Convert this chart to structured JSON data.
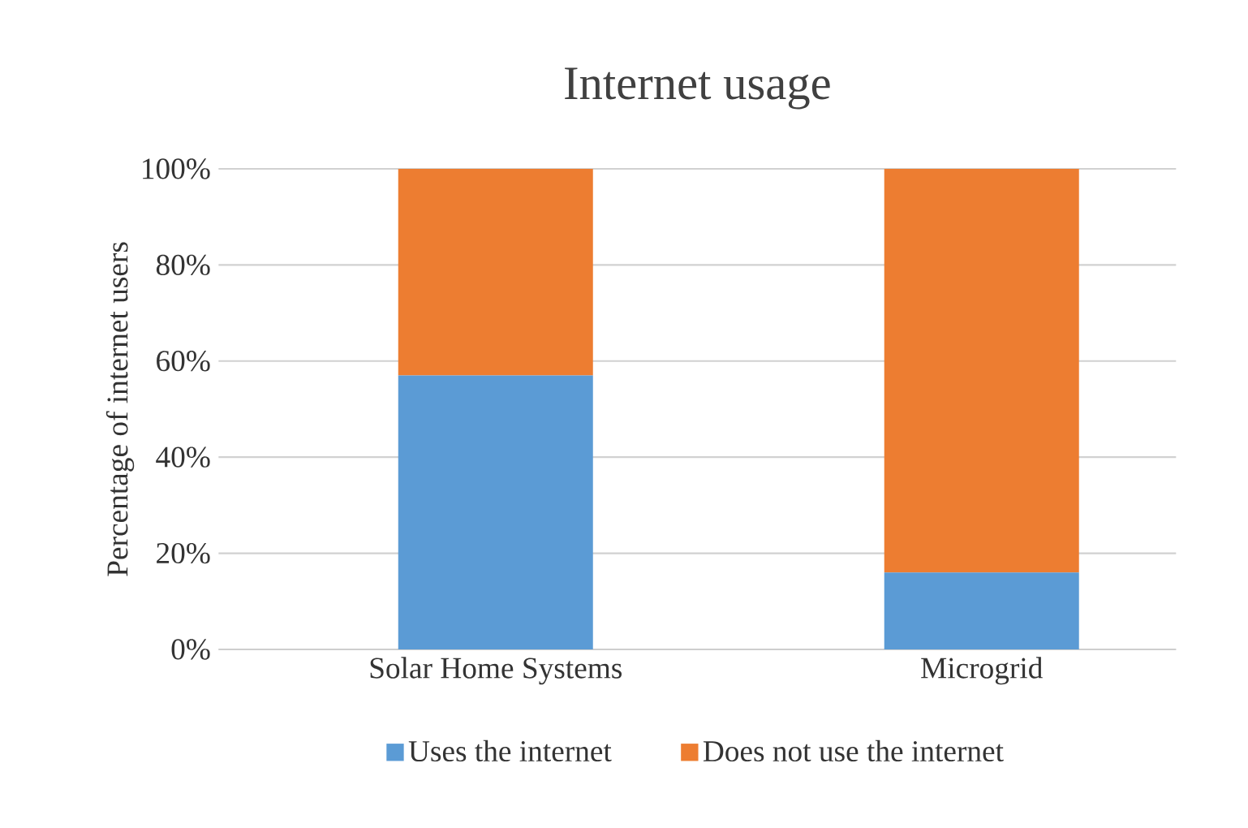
{
  "chart_data": {
    "type": "bar",
    "title": "Internet usage",
    "ylabel": "Percentage of internet users",
    "categories": [
      "Solar Home Systems",
      "Microgrid"
    ],
    "stacked": true,
    "series": [
      {
        "name": "Uses the internet",
        "color": "#5b9bd5",
        "values": [
          57,
          16
        ]
      },
      {
        "name": "Does not use the internet",
        "color": "#ed7d31",
        "values": [
          43,
          84
        ]
      }
    ],
    "ylim": [
      0,
      100
    ],
    "yticks": [
      {
        "value": 0,
        "label": "0%"
      },
      {
        "value": 20,
        "label": "20%"
      },
      {
        "value": 40,
        "label": "40%"
      },
      {
        "value": 60,
        "label": "60%"
      },
      {
        "value": 80,
        "label": "80%"
      },
      {
        "value": 100,
        "label": "100%"
      }
    ],
    "grid": "y",
    "legend": "bottom"
  }
}
